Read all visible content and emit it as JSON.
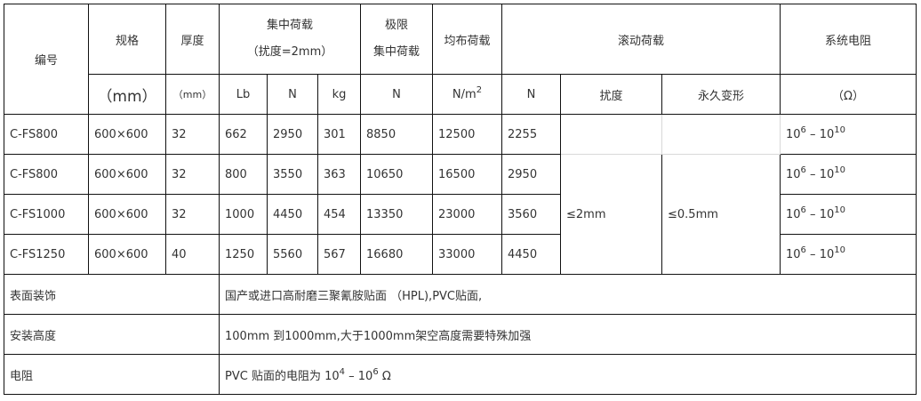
{
  "header": {
    "code": "编号",
    "spec": "规格",
    "spec_unit": "（mm）",
    "thickness": "厚度",
    "thickness_unit": "（mm）",
    "conc_load": "集中荷载",
    "conc_load_note": "（扰度=2mm）",
    "conc_units": [
      "Lb",
      "N",
      "kg"
    ],
    "ult_load_line1": "极限",
    "ult_load_line2": "集中荷载",
    "ult_unit": "N",
    "uniform_load": "均布荷载",
    "uniform_unit": "N/m",
    "uniform_unit_exp": "2",
    "rolling_load": "滚动荷载",
    "rolling_units": [
      "N",
      "扰度",
      "永久变形"
    ],
    "resistance": "系统电阻",
    "resistance_unit": "（Ω）"
  },
  "rows": [
    {
      "code": "C-FS800",
      "spec": "600×600",
      "thickness": "32",
      "lb": "662",
      "n": "2950",
      "kg": "301",
      "ult": "8850",
      "uniform": "12500",
      "rolling": "2255"
    },
    {
      "code": "C-FS800",
      "spec": "600×600",
      "thickness": "32",
      "lb": "800",
      "n": "3550",
      "kg": "363",
      "ult": "10650",
      "uniform": "16500",
      "rolling": "2950"
    },
    {
      "code": "C-FS1000",
      "spec": "600×600",
      "thickness": "32",
      "lb": "1000",
      "n": "4450",
      "kg": "454",
      "ult": "13350",
      "uniform": "23000",
      "rolling": "3560"
    },
    {
      "code": "C-FS1250",
      "spec": "600×600",
      "thickness": "40",
      "lb": "1250",
      "n": "5560",
      "kg": "567",
      "ult": "16680",
      "uniform": "33000",
      "rolling": "4450"
    }
  ],
  "resistance_value": {
    "base1": "10",
    "exp1": "6",
    "dash": " – ",
    "base2": "10",
    "exp2": "10"
  },
  "rolling_deflection": "≤2mm",
  "rolling_permanent": "≤0.5mm",
  "footer": [
    {
      "label": "表面装饰",
      "value": "国产或进口高耐磨三聚氰胺贴面 （HPL),PVC贴面,"
    },
    {
      "label": "安装高度",
      "value": "100mm 到1000mm,大于1000mm架空高度需要特殊加强"
    }
  ],
  "resistance_row": {
    "label": "电阻",
    "prefix": "PVC 贴面的电阻为 ",
    "base1": "10",
    "exp1": "4",
    "dash": " – ",
    "base2": "10",
    "exp2": "6",
    "suffix": " Ω"
  }
}
